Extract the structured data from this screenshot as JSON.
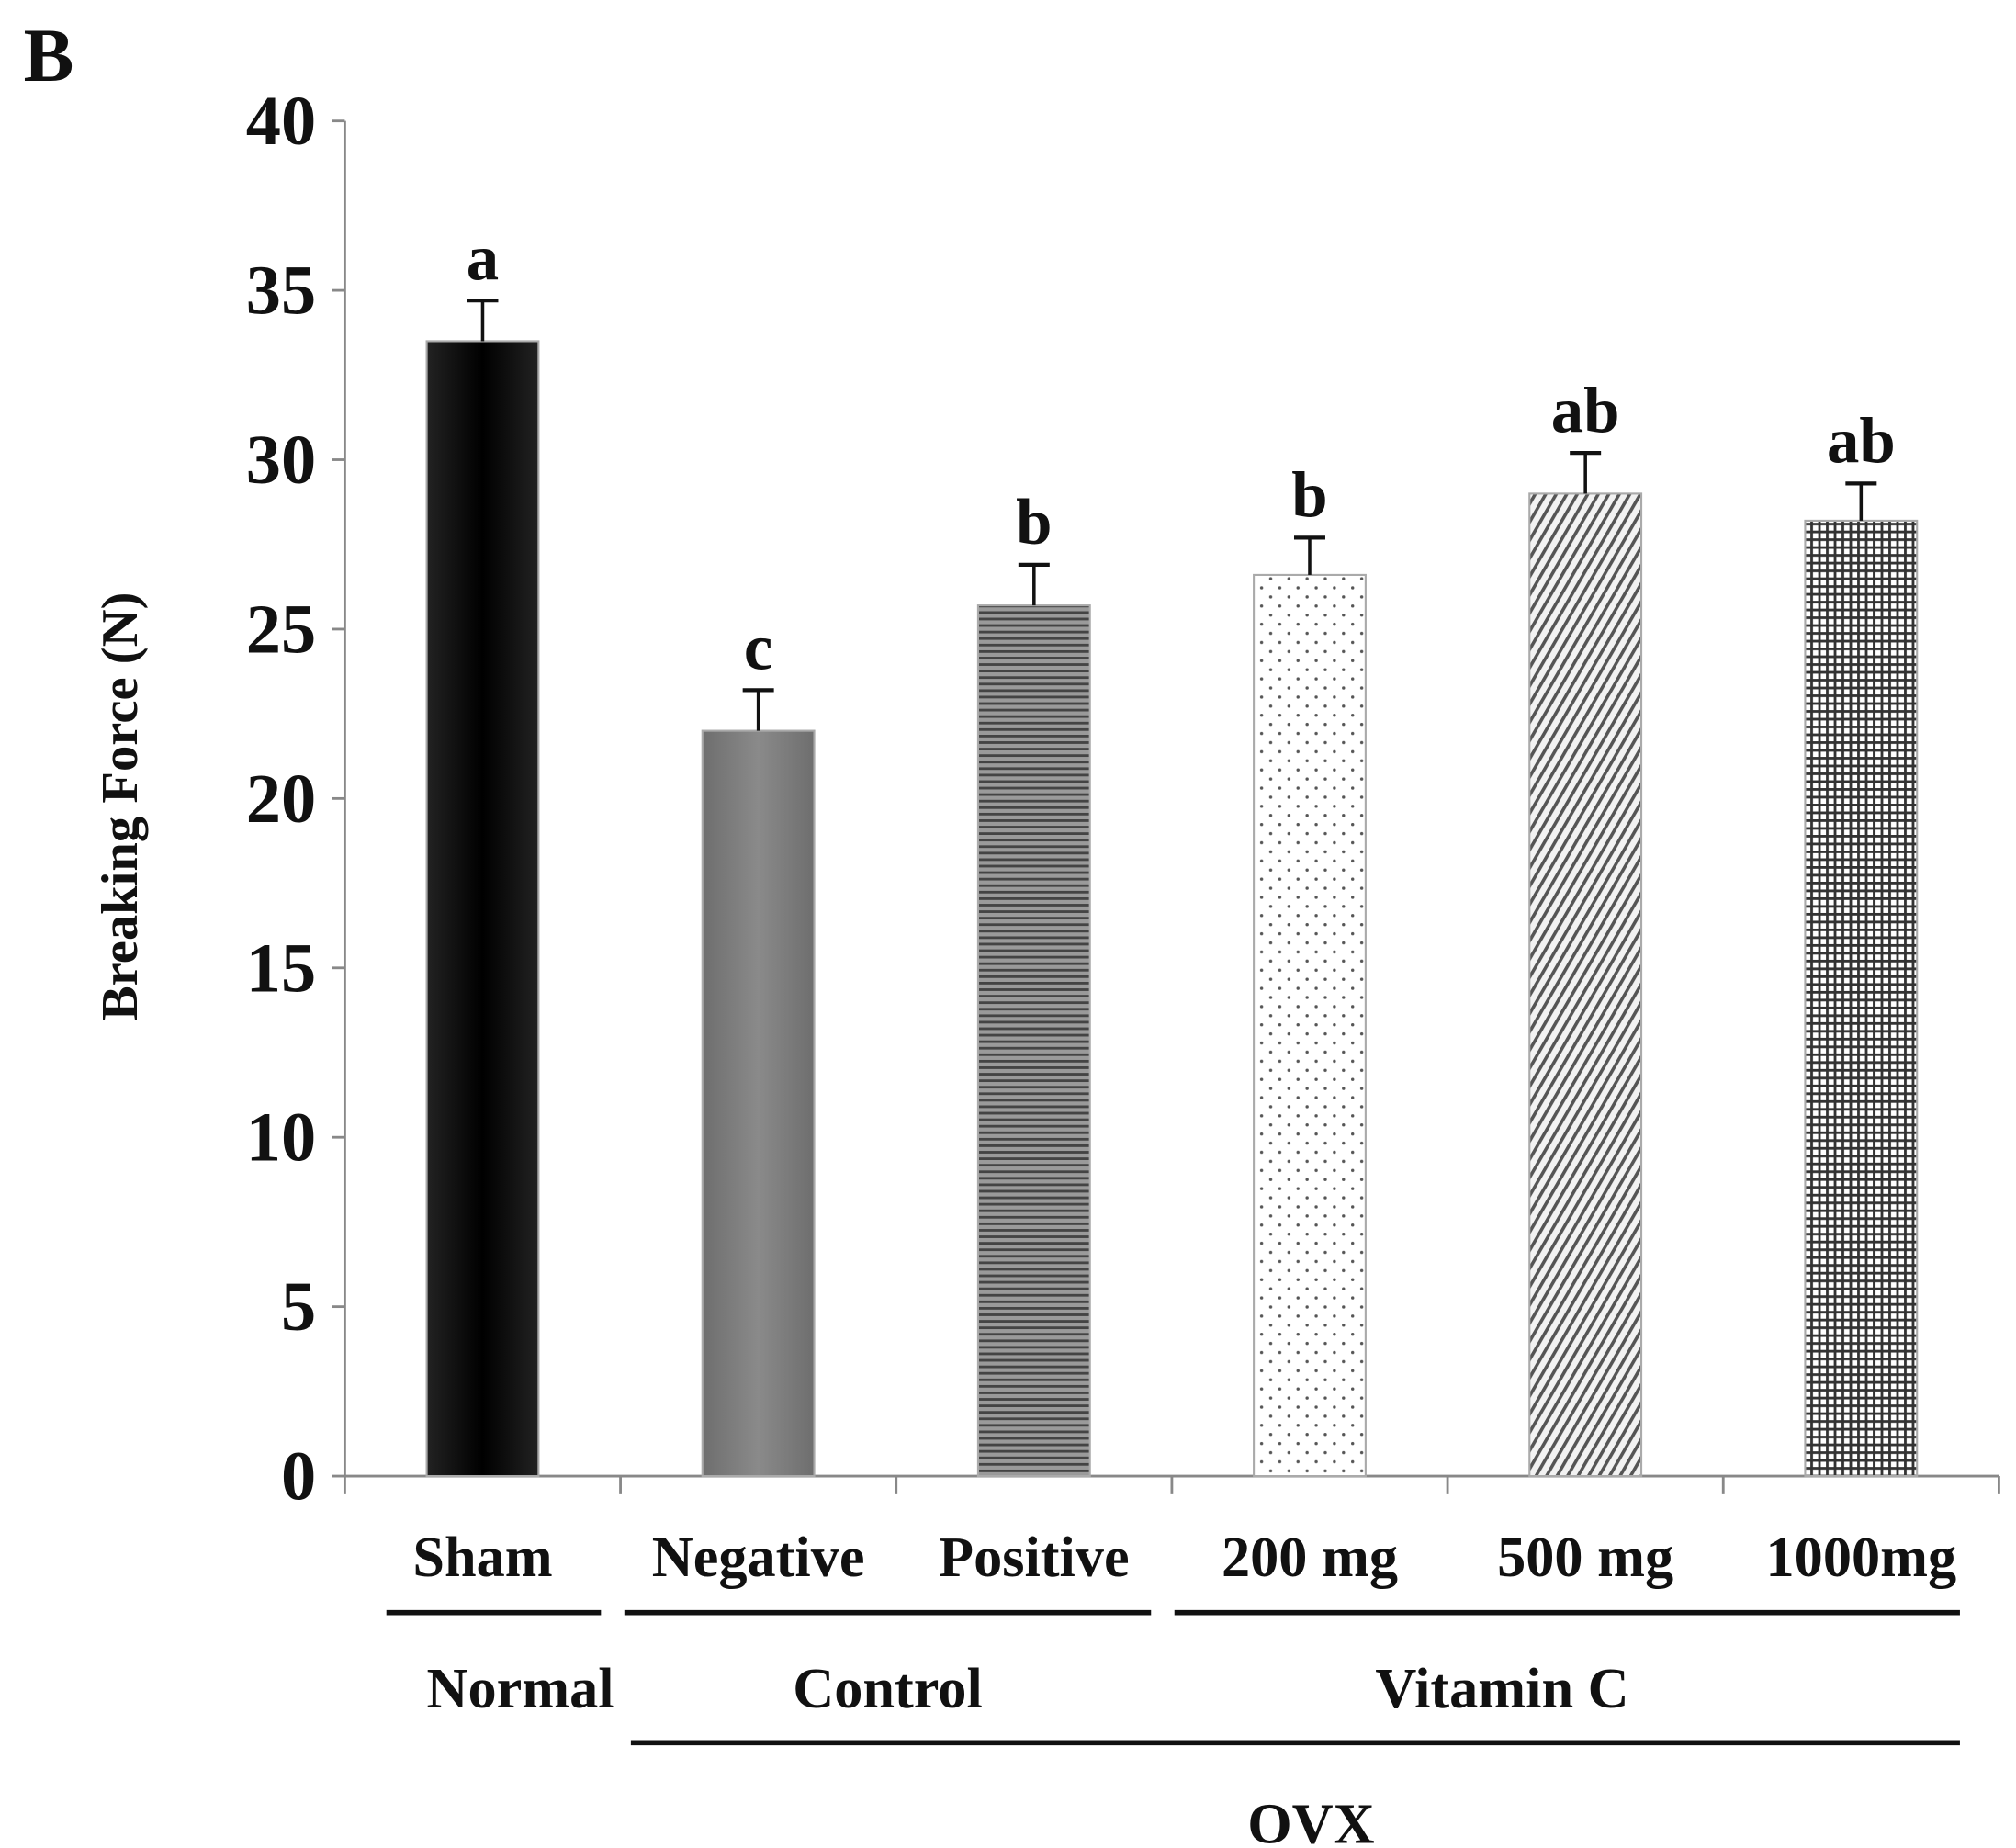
{
  "panel_label": "B",
  "chart_data": {
    "type": "bar",
    "title": "",
    "xlabel": "",
    "ylabel": "Breaking Force (N)",
    "ylim": [
      0,
      40
    ],
    "yticks": [
      0,
      5,
      10,
      15,
      20,
      25,
      30,
      35,
      40
    ],
    "grid": false,
    "categories": [
      "Sham",
      "Negative",
      "Positive",
      "200 mg",
      "500 mg",
      "1000mg"
    ],
    "values": [
      33.5,
      22.0,
      25.7,
      26.6,
      29.0,
      28.2
    ],
    "error_upper": [
      1.2,
      1.2,
      1.2,
      1.1,
      1.2,
      1.1
    ],
    "significance_letters": [
      "a",
      "c",
      "b",
      "b",
      "ab",
      "ab"
    ],
    "fills": [
      "solid-black",
      "solid-gray",
      "horizontal-lines",
      "dots",
      "diagonal-hatch",
      "grid"
    ],
    "groups": [
      {
        "label": "Normal",
        "categories": [
          "Sham"
        ]
      },
      {
        "label": "Control",
        "categories": [
          "Negative",
          "Positive"
        ]
      },
      {
        "label": "Vitamin C",
        "categories": [
          "200 mg",
          "500 mg",
          "1000mg"
        ]
      }
    ],
    "supergroup": {
      "label": "OVX",
      "groups": [
        "Control",
        "Vitamin C"
      ]
    }
  }
}
